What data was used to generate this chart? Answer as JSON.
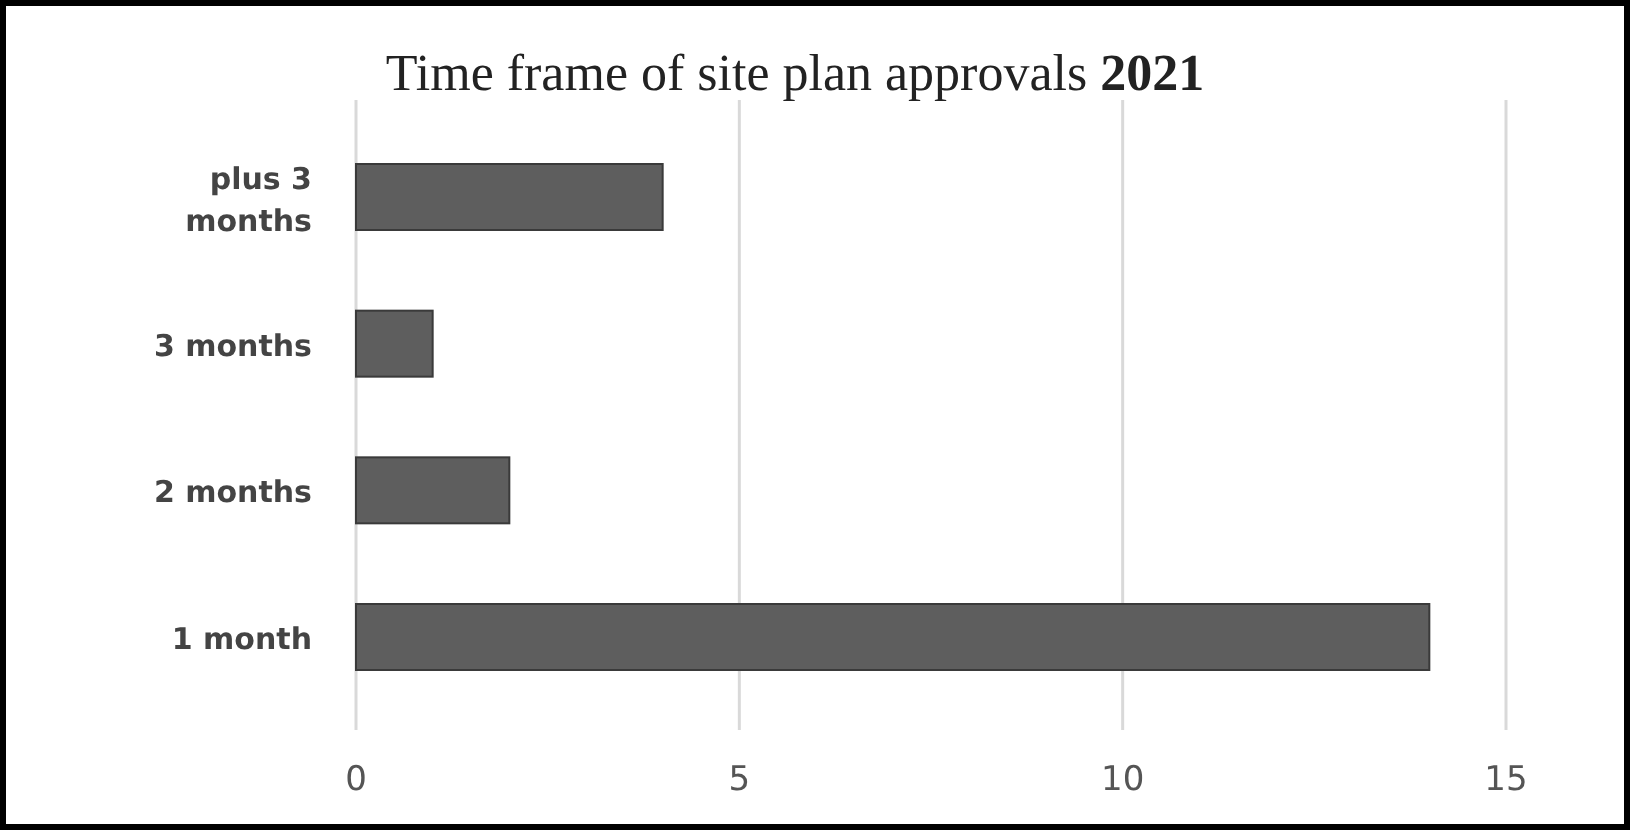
{
  "chart_data": {
    "type": "bar",
    "orientation": "horizontal",
    "title": "Time frame of site plan approvals 2021",
    "categories": [
      "plus 3 months",
      "3 months",
      "2 months",
      "1 month"
    ],
    "values": [
      4,
      1,
      2,
      14
    ],
    "color": "#5e5e5e",
    "xlim": [
      0,
      15
    ],
    "xticks": [
      0,
      5,
      10,
      15
    ],
    "grid": "x"
  }
}
